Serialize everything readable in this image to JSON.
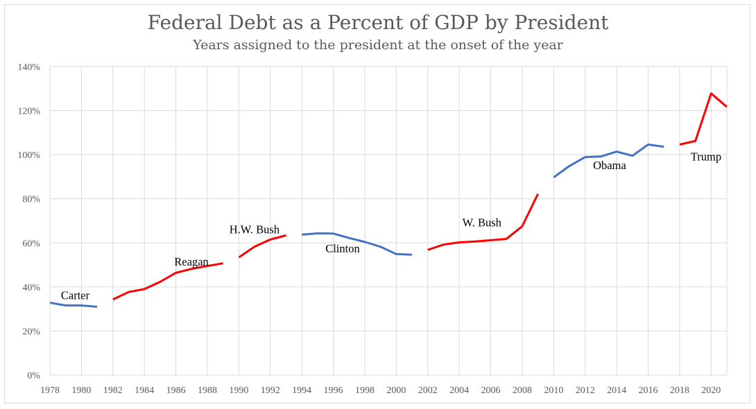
{
  "chart_data": {
    "type": "line",
    "title": "Federal Debt as a Percent of GDP by President",
    "subtitle": "Years assigned to the president at the onset of the year",
    "xlabel": "",
    "ylabel": "",
    "xlim": [
      1978,
      2021
    ],
    "ylim": [
      0,
      140
    ],
    "grid": true,
    "legend": "none",
    "x_ticks": [
      "1978",
      "1980",
      "1982",
      "1984",
      "1986",
      "1988",
      "1990",
      "1992",
      "1994",
      "1996",
      "1998",
      "2000",
      "2002",
      "2004",
      "2006",
      "2008",
      "2010",
      "2012",
      "2014",
      "2016",
      "2018",
      "2020"
    ],
    "y_ticks": [
      "0%",
      "20%",
      "40%",
      "60%",
      "80%",
      "100%",
      "120%",
      "140%"
    ],
    "colors": {
      "blue": "#4472c4",
      "red": "#ff0000",
      "grid": "#d9d9d9"
    },
    "series": [
      {
        "name": "Carter",
        "color": "blue",
        "x": [
          1978,
          1979,
          1980,
          1981
        ],
        "y": [
          32.8,
          31.6,
          31.6,
          31.0
        ],
        "annotation": {
          "text": "Carter",
          "x": 1978.7,
          "y": 34.5
        }
      },
      {
        "name": "Reagan",
        "color": "red",
        "x": [
          1982,
          1983,
          1984,
          1985,
          1986,
          1987,
          1988,
          1989
        ],
        "y": [
          34.3,
          37.7,
          39.0,
          42.3,
          46.4,
          48.2,
          49.5,
          50.7
        ],
        "annotation": {
          "text": "Reagan",
          "x": 1985.9,
          "y": 49.7
        }
      },
      {
        "name": "H.W. Bush",
        "color": "red",
        "x": [
          1990,
          1991,
          1992,
          1993
        ],
        "y": [
          53.4,
          58.3,
          61.5,
          63.4
        ],
        "annotation": {
          "text": "H.W. Bush",
          "x": 1989.4,
          "y": 64.4
        }
      },
      {
        "name": "Clinton",
        "color": "blue",
        "x": [
          1994,
          1995,
          1996,
          1997,
          1998,
          1999,
          2000,
          2001
        ],
        "y": [
          63.7,
          64.3,
          64.2,
          62.2,
          60.4,
          58.2,
          54.9,
          54.6
        ],
        "annotation": {
          "text": "Clinton",
          "x": 1995.5,
          "y": 55.7
        }
      },
      {
        "name": "W. Bush",
        "color": "red",
        "x": [
          2002,
          2003,
          2004,
          2005,
          2006,
          2007,
          2008,
          2009
        ],
        "y": [
          56.8,
          59.2,
          60.2,
          60.6,
          61.2,
          61.8,
          67.5,
          82.2
        ],
        "annotation": {
          "text": "W. Bush",
          "x": 2004.2,
          "y": 67.5
        }
      },
      {
        "name": "Obama",
        "color": "blue",
        "x": [
          2010,
          2011,
          2012,
          2013,
          2014,
          2015,
          2016,
          2017
        ],
        "y": [
          89.7,
          94.9,
          98.9,
          99.2,
          101.4,
          99.5,
          104.6,
          103.6
        ],
        "annotation": {
          "text": "Obama",
          "x": 2012.5,
          "y": 93.5
        }
      },
      {
        "name": "Trump",
        "color": "red",
        "x": [
          2018,
          2019,
          2020,
          2021
        ],
        "y": [
          104.6,
          106.2,
          127.8,
          121.7
        ],
        "annotation": {
          "text": "Trump",
          "x": 2018.7,
          "y": 97.3
        }
      }
    ]
  }
}
